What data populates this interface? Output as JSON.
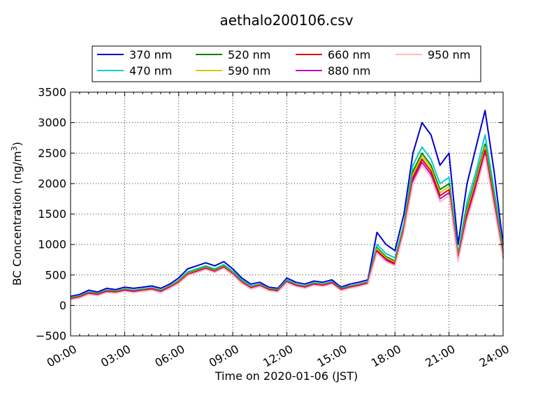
{
  "chart_data": {
    "type": "line",
    "title": "aethalo200106.csv",
    "xlabel": "Time on 2020-01-06 (JST)",
    "ylabel_main": "BC Concentration (ng/m",
    "ylabel_sup": "3",
    "ylabel_tail": ")",
    "xlim": [
      0,
      24
    ],
    "ylim": [
      -500,
      3500
    ],
    "x_tick_values": [
      0,
      3,
      6,
      9,
      12,
      15,
      18,
      21,
      24
    ],
    "x_tick_labels": [
      "00:00",
      "03:00",
      "06:00",
      "09:00",
      "12:00",
      "15:00",
      "18:00",
      "21:00",
      "24:00"
    ],
    "y_tick_values": [
      -500,
      0,
      500,
      1000,
      1500,
      2000,
      2500,
      3000,
      3500
    ],
    "y_tick_labels": [
      "−500",
      "0",
      "500",
      "1000",
      "1500",
      "2000",
      "2500",
      "3000",
      "3500"
    ],
    "grid": true,
    "legend_placement": "top, above plot",
    "x": [
      0,
      0.5,
      1,
      1.5,
      2,
      2.5,
      3,
      3.5,
      4,
      4.5,
      5,
      5.5,
      6,
      6.5,
      7,
      7.5,
      8,
      8.5,
      9,
      9.5,
      10,
      10.5,
      11,
      11.5,
      12,
      12.5,
      13,
      13.5,
      14,
      14.5,
      15,
      15.5,
      16,
      16.5,
      17,
      17.5,
      18,
      18.5,
      19,
      19.5,
      20,
      20.5,
      21,
      21.5,
      22,
      22.5,
      23,
      23.5,
      24
    ],
    "series": [
      {
        "name": "370 nm",
        "color": "#0000cc",
        "values": [
          150,
          180,
          250,
          220,
          280,
          260,
          300,
          280,
          300,
          320,
          280,
          350,
          450,
          600,
          650,
          700,
          650,
          720,
          600,
          450,
          350,
          380,
          300,
          280,
          450,
          380,
          350,
          400,
          380,
          420,
          300,
          350,
          380,
          420,
          1200,
          1000,
          900,
          1500,
          2500,
          3000,
          2800,
          2300,
          2500,
          1000,
          2000,
          2600,
          3200,
          2200,
          1000
        ]
      },
      {
        "name": "470 nm",
        "color": "#00cccc",
        "values": [
          130,
          160,
          220,
          200,
          250,
          240,
          270,
          250,
          270,
          290,
          250,
          320,
          410,
          550,
          600,
          650,
          600,
          670,
          560,
          420,
          320,
          350,
          280,
          260,
          420,
          350,
          320,
          370,
          350,
          390,
          280,
          320,
          350,
          390,
          1000,
          850,
          780,
          1350,
          2300,
          2600,
          2400,
          2000,
          2100,
          850,
          1700,
          2200,
          2800,
          1900,
          900
        ]
      },
      {
        "name": "520 nm",
        "color": "#008000",
        "values": [
          120,
          150,
          210,
          190,
          240,
          230,
          260,
          240,
          260,
          280,
          240,
          310,
          400,
          530,
          580,
          630,
          580,
          650,
          540,
          400,
          300,
          340,
          270,
          250,
          400,
          340,
          310,
          360,
          340,
          380,
          270,
          310,
          340,
          380,
          950,
          800,
          730,
          1300,
          2200,
          2500,
          2300,
          1900,
          2000,
          800,
          1600,
          2100,
          2650,
          1800,
          850
        ]
      },
      {
        "name": "590 nm",
        "color": "#cccc00",
        "values": [
          115,
          145,
          205,
          185,
          235,
          225,
          255,
          235,
          255,
          275,
          235,
          305,
          390,
          520,
          570,
          620,
          570,
          640,
          530,
          390,
          295,
          335,
          265,
          245,
          395,
          335,
          305,
          355,
          335,
          375,
          265,
          305,
          335,
          375,
          930,
          780,
          710,
          1280,
          2150,
          2450,
          2250,
          1850,
          1950,
          780,
          1550,
          2050,
          2600,
          1750,
          830
        ]
      },
      {
        "name": "660 nm",
        "color": "#e00000",
        "values": [
          110,
          140,
          200,
          180,
          230,
          220,
          250,
          230,
          250,
          270,
          230,
          300,
          380,
          510,
          560,
          610,
          560,
          630,
          520,
          380,
          290,
          330,
          260,
          240,
          390,
          330,
          300,
          350,
          330,
          370,
          260,
          300,
          330,
          370,
          900,
          760,
          690,
          1250,
          2100,
          2400,
          2200,
          1800,
          1900,
          760,
          1500,
          2000,
          2550,
          1700,
          800
        ]
      },
      {
        "name": "880 nm",
        "color": "#bb00bb",
        "values": [
          100,
          130,
          190,
          170,
          220,
          210,
          240,
          220,
          240,
          260,
          220,
          290,
          370,
          500,
          550,
          600,
          550,
          620,
          510,
          370,
          280,
          320,
          250,
          230,
          380,
          320,
          290,
          340,
          320,
          360,
          250,
          290,
          320,
          360,
          880,
          740,
          670,
          1220,
          2050,
          2350,
          2150,
          1750,
          1850,
          740,
          1450,
          1950,
          2500,
          1650,
          780
        ]
      },
      {
        "name": "950 nm",
        "color": "#ffbbbb",
        "values": [
          90,
          120,
          180,
          160,
          210,
          200,
          230,
          210,
          230,
          250,
          210,
          280,
          360,
          490,
          540,
          590,
          540,
          610,
          500,
          360,
          270,
          310,
          240,
          220,
          370,
          310,
          280,
          330,
          310,
          350,
          240,
          280,
          310,
          350,
          860,
          720,
          650,
          1200,
          2000,
          2300,
          2100,
          1700,
          1800,
          720,
          1400,
          1900,
          2450,
          1600,
          760
        ]
      }
    ]
  }
}
